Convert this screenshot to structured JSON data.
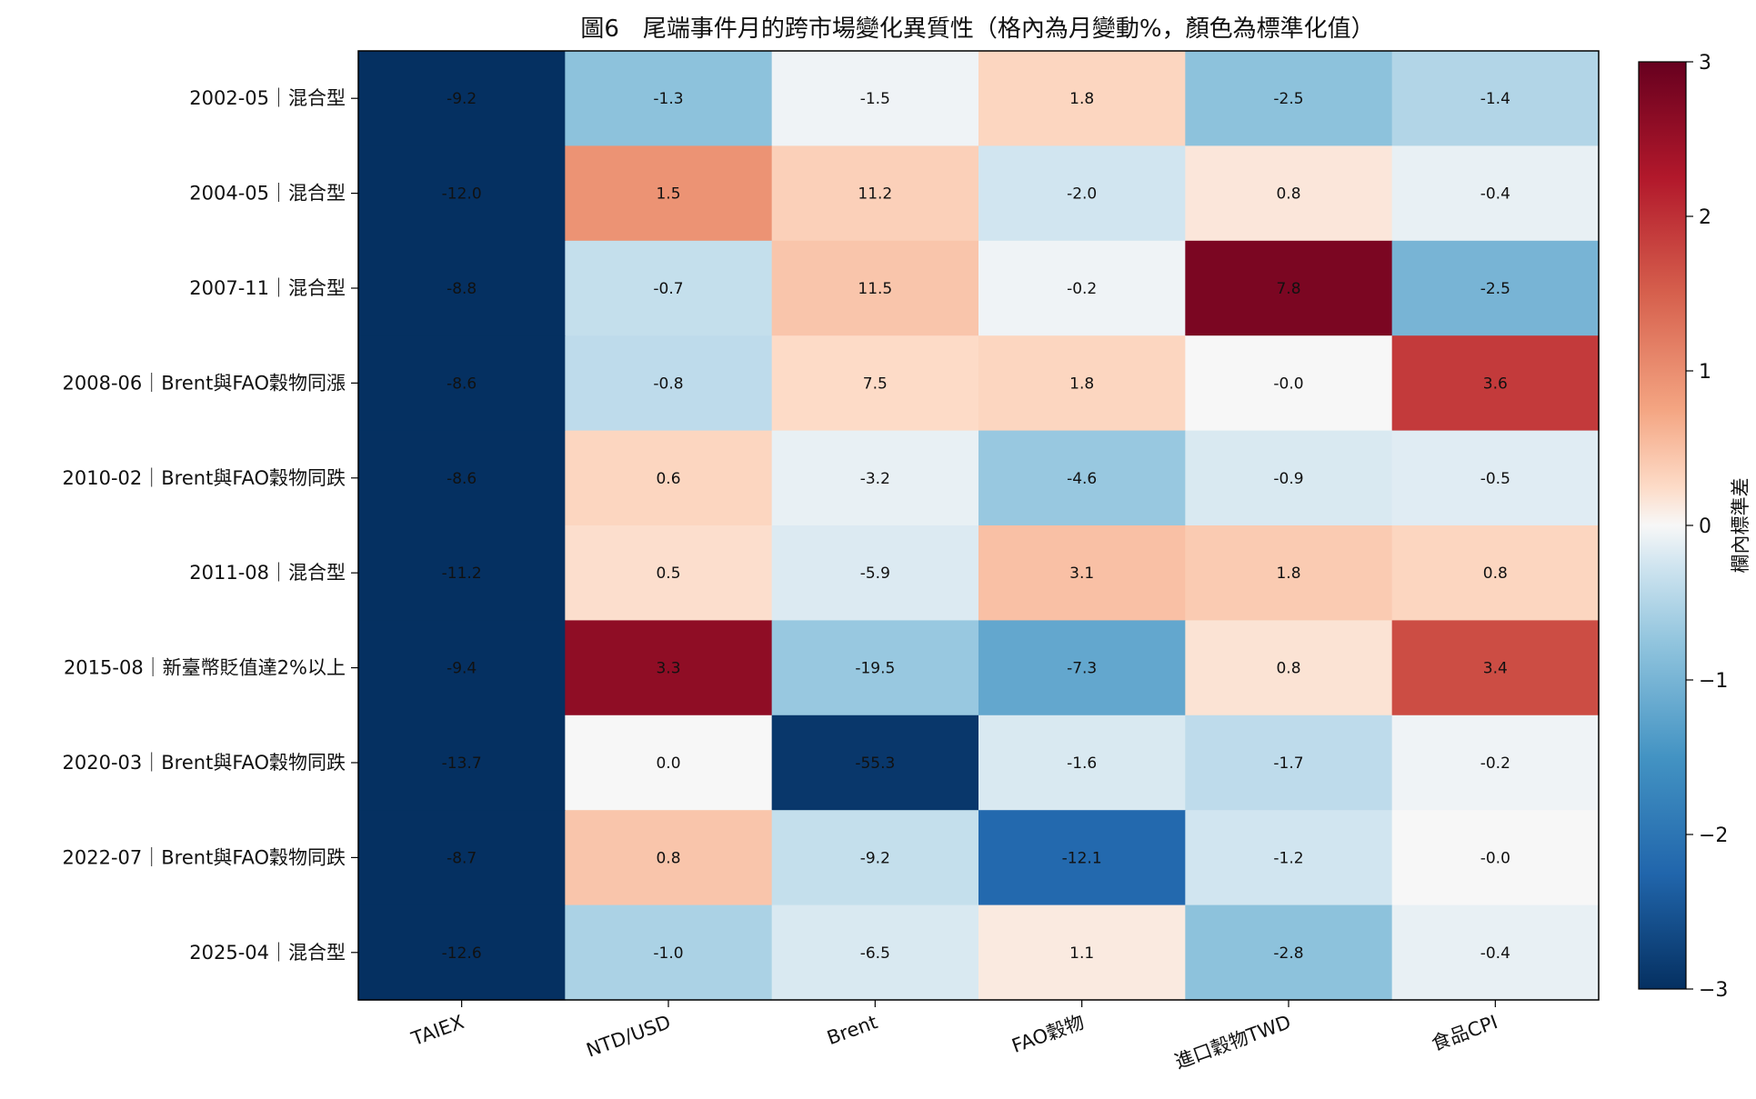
{
  "chart_data": {
    "type": "heatmap",
    "title": "圖6　尾端事件月的跨市場變化異質性（格內為月變動%，顏色為標準化值）",
    "columns": [
      "TAIEX",
      "NTD/USD",
      "Brent",
      "FAO穀物",
      "進口穀物TWD",
      "食品CPI"
    ],
    "rows": [
      "2002-05｜混合型",
      "2004-05｜混合型",
      "2007-11｜混合型",
      "2008-06｜Brent與FAO穀物同漲",
      "2010-02｜Brent與FAO穀物同跌",
      "2011-08｜混合型",
      "2015-08｜新臺幣貶值達2%以上",
      "2020-03｜Brent與FAO穀物同跌",
      "2022-07｜Brent與FAO穀物同跌",
      "2025-04｜混合型"
    ],
    "cell_labels": [
      [
        "-9.2",
        "-1.3",
        "-1.5",
        "1.8",
        "-2.5",
        "-1.4"
      ],
      [
        "-12.0",
        "1.5",
        "11.2",
        "-2.0",
        "0.8",
        "-0.4"
      ],
      [
        "-8.8",
        "-0.7",
        "11.5",
        "-0.2",
        "7.8",
        "-2.5"
      ],
      [
        "-8.6",
        "-0.8",
        "7.5",
        "1.8",
        "-0.0",
        "3.6"
      ],
      [
        "-8.6",
        "0.6",
        "-3.2",
        "-4.6",
        "-0.9",
        "-0.5"
      ],
      [
        "-11.2",
        "0.5",
        "-5.9",
        "3.1",
        "1.8",
        "0.8"
      ],
      [
        "-9.4",
        "3.3",
        "-19.5",
        "-7.3",
        "0.8",
        "3.4"
      ],
      [
        "-13.7",
        "0.0",
        "-55.3",
        "-1.6",
        "-1.7",
        "-0.2"
      ],
      [
        "-8.7",
        "0.8",
        "-9.2",
        "-12.1",
        "-1.2",
        "-0.0"
      ],
      [
        "-12.6",
        "-1.0",
        "-6.5",
        "1.1",
        "-2.8",
        "-0.4"
      ]
    ],
    "standardized_values": [
      [
        -3.0,
        -0.8,
        -0.05,
        0.3,
        -0.8,
        -0.5
      ],
      [
        -3.0,
        0.95,
        0.35,
        -0.25,
        0.15,
        -0.1
      ],
      [
        -3.0,
        -0.35,
        0.45,
        -0.05,
        2.8,
        -1.0
      ],
      [
        -3.0,
        -0.4,
        0.25,
        0.3,
        0.0,
        1.9
      ],
      [
        -3.0,
        0.3,
        -0.1,
        -0.7,
        -0.2,
        -0.15
      ],
      [
        -3.0,
        0.22,
        -0.18,
        0.5,
        0.4,
        0.3
      ],
      [
        -3.0,
        2.6,
        -0.7,
        -1.2,
        0.18,
        1.7
      ],
      [
        -3.0,
        0.0,
        -2.9,
        -0.2,
        -0.4,
        -0.05
      ],
      [
        -3.0,
        0.45,
        -0.35,
        -2.2,
        -0.25,
        0.0
      ],
      [
        -3.0,
        -0.55,
        -0.2,
        0.12,
        -0.8,
        -0.1
      ]
    ],
    "colorbar": {
      "label": "欄內標準差",
      "range": [
        -3,
        3
      ],
      "ticks": [
        "3",
        "2",
        "1",
        "0",
        "−1",
        "−2",
        "−3"
      ],
      "colormap": "RdBu_r",
      "stops": [
        {
          "v": -3.0,
          "c": "#053061"
        },
        {
          "v": -2.25,
          "c": "#2166ac"
        },
        {
          "v": -1.5,
          "c": "#4393c3"
        },
        {
          "v": -0.75,
          "c": "#92c5de"
        },
        {
          "v": -0.25,
          "c": "#d1e5f0"
        },
        {
          "v": 0.0,
          "c": "#f7f7f7"
        },
        {
          "v": 0.25,
          "c": "#fddbc7"
        },
        {
          "v": 0.75,
          "c": "#f4a582"
        },
        {
          "v": 1.5,
          "c": "#d6604d"
        },
        {
          "v": 2.25,
          "c": "#b2182b"
        },
        {
          "v": 3.0,
          "c": "#67001f"
        }
      ]
    }
  }
}
